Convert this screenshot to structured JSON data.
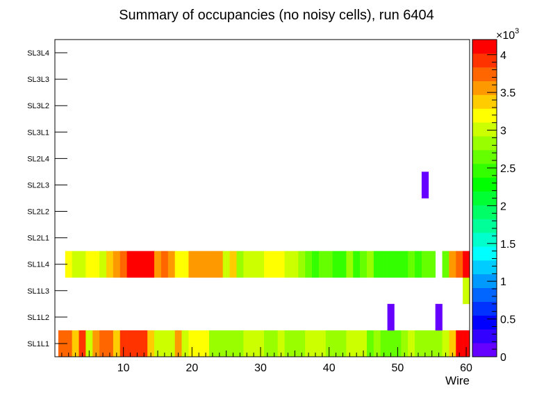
{
  "chart_data": {
    "type": "heatmap",
    "title": "Summary of occupancies (no noisy cells), run 6404",
    "xlabel": "Wire",
    "ylabel": "",
    "xlim": [
      0,
      60.5
    ],
    "x_ticks": [
      "10",
      "20",
      "30",
      "40",
      "50",
      "60"
    ],
    "x_tick_values": [
      10,
      20,
      30,
      40,
      50,
      60
    ],
    "y_categories": [
      "SL1L1",
      "SL1L2",
      "SL1L3",
      "SL1L4",
      "SL2L1",
      "SL2L2",
      "SL2L3",
      "SL2L4",
      "SL3L1",
      "SL3L2",
      "SL3L3",
      "SL3L4"
    ],
    "z_range": [
      0,
      4200
    ],
    "z_exponent_label": "×10",
    "z_exponent_power": "3",
    "z_ticks": [
      "0",
      "0.5",
      "1",
      "1.5",
      "2",
      "2.5",
      "3",
      "3.5",
      "4"
    ],
    "z_tick_values": [
      0,
      500,
      1000,
      1500,
      2000,
      2500,
      3000,
      3500,
      4000
    ],
    "palette": [
      "#6600ff",
      "#3300ff",
      "#0000ff",
      "#0033ff",
      "#0066ff",
      "#0099ff",
      "#00ccff",
      "#00ffff",
      "#00ffcc",
      "#00ff99",
      "#00ff66",
      "#00ff33",
      "#00ff00",
      "#33ff00",
      "#66ff00",
      "#99ff00",
      "#ccff00",
      "#ffff00",
      "#ffcc00",
      "#ff9900",
      "#ff6600",
      "#ff3300",
      "#ff0000"
    ],
    "rows": [
      {
        "layer": "SL1L1",
        "start_wire": 1,
        "values": [
          3700,
          3700,
          3400,
          3900,
          3100,
          3600,
          3700,
          3700,
          3400,
          4000,
          4000,
          4000,
          4000,
          3400,
          3100,
          3100,
          3100,
          3500,
          3100,
          3200,
          3200,
          3200,
          2900,
          2800,
          2800,
          2800,
          2800,
          3100,
          3100,
          3100,
          2900,
          2800,
          3000,
          2800,
          2800,
          2800,
          3100,
          3100,
          3100,
          2800,
          2900,
          2900,
          3000,
          3000,
          3000,
          2700,
          2800,
          2600,
          2600,
          2600,
          2900,
          3000,
          2800,
          2800,
          2800,
          2800,
          3100,
          3400,
          4100,
          4100
        ]
      },
      {
        "layer": "SL1L2",
        "points": [
          {
            "wire": 49,
            "value": 150
          },
          {
            "wire": 56,
            "value": 150
          }
        ]
      },
      {
        "layer": "SL1L3",
        "points": [
          {
            "wire": 60,
            "value": 3100
          }
        ]
      },
      {
        "layer": "SL1L4",
        "start_wire": 2,
        "values": [
          3200,
          3100,
          3100,
          3200,
          3200,
          3100,
          3300,
          3500,
          3700,
          4100,
          4100,
          4100,
          4100,
          3500,
          3800,
          3500,
          3200,
          3200,
          3600,
          3500,
          3600,
          3600,
          3600,
          3100,
          3300,
          2800,
          3000,
          3100,
          3100,
          3200,
          3200,
          3200,
          3000,
          3000,
          2800,
          2600,
          2400,
          2600,
          2600,
          2400,
          2400,
          2800,
          2500,
          2600,
          2800,
          2400,
          2400,
          2400,
          2400,
          2400,
          2700,
          2500,
          2700,
          2600,
          null,
          2700,
          3500,
          3800,
          4100,
          4100
        ]
      },
      {
        "layer": "SL2L3",
        "points": [
          {
            "wire": 54,
            "value": 150
          }
        ]
      }
    ]
  }
}
